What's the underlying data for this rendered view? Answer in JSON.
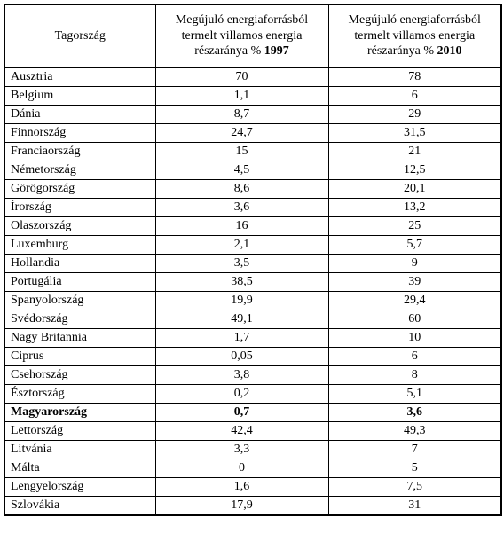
{
  "table": {
    "headers": {
      "country": "Tagország",
      "col1_line1": "Megújuló energiaforrásból",
      "col1_line2": "termelt villamos energia",
      "col1_line3_prefix": "részaránya % ",
      "col1_year": "1997",
      "col2_line1": "Megújuló energiaforrásból",
      "col2_line2": "termelt villamos energia",
      "col2_line3_prefix": "részaránya % ",
      "col2_year": "2010"
    },
    "rows": [
      {
        "country": "Ausztria",
        "y1997": "70",
        "y2010": "78",
        "bold": false
      },
      {
        "country": "Belgium",
        "y1997": "1,1",
        "y2010": "6",
        "bold": false
      },
      {
        "country": "Dánia",
        "y1997": "8,7",
        "y2010": "29",
        "bold": false
      },
      {
        "country": "Finnország",
        "y1997": "24,7",
        "y2010": "31,5",
        "bold": false
      },
      {
        "country": "Franciaország",
        "y1997": "15",
        "y2010": "21",
        "bold": false
      },
      {
        "country": "Németország",
        "y1997": "4,5",
        "y2010": "12,5",
        "bold": false
      },
      {
        "country": "Görögország",
        "y1997": "8,6",
        "y2010": "20,1",
        "bold": false
      },
      {
        "country": "Írország",
        "y1997": "3,6",
        "y2010": "13,2",
        "bold": false
      },
      {
        "country": "Olaszország",
        "y1997": "16",
        "y2010": "25",
        "bold": false
      },
      {
        "country": "Luxemburg",
        "y1997": "2,1",
        "y2010": "5,7",
        "bold": false
      },
      {
        "country": "Hollandia",
        "y1997": "3,5",
        "y2010": "9",
        "bold": false
      },
      {
        "country": "Portugália",
        "y1997": "38,5",
        "y2010": "39",
        "bold": false
      },
      {
        "country": "Spanyolország",
        "y1997": "19,9",
        "y2010": "29,4",
        "bold": false
      },
      {
        "country": "Svédország",
        "y1997": "49,1",
        "y2010": "60",
        "bold": false
      },
      {
        "country": "Nagy Britannia",
        "y1997": "1,7",
        "y2010": "10",
        "bold": false
      },
      {
        "country": "Ciprus",
        "y1997": "0,05",
        "y2010": "6",
        "bold": false
      },
      {
        "country": "Csehország",
        "y1997": "3,8",
        "y2010": "8",
        "bold": false
      },
      {
        "country": "Észtország",
        "y1997": "0,2",
        "y2010": "5,1",
        "bold": false
      },
      {
        "country": "Magyarország",
        "y1997": "0,7",
        "y2010": "3,6",
        "bold": true
      },
      {
        "country": "Lettország",
        "y1997": "42,4",
        "y2010": "49,3",
        "bold": false
      },
      {
        "country": "Litvánia",
        "y1997": "3,3",
        "y2010": "7",
        "bold": false
      },
      {
        "country": "Málta",
        "y1997": "0",
        "y2010": "5",
        "bold": false
      },
      {
        "country": "Lengyelország",
        "y1997": "1,6",
        "y2010": "7,5",
        "bold": false
      },
      {
        "country": "Szlovákia",
        "y1997": "17,9",
        "y2010": "31",
        "bold": false
      }
    ]
  }
}
